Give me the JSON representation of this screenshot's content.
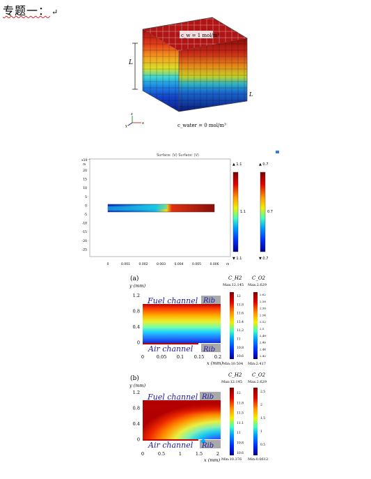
{
  "heading": {
    "text": "专题一：",
    "return_mark": "↵"
  },
  "cube": {
    "label_top": "c_w = 1 mol/m³",
    "label_bottom": "c_water = 0 mol/m³",
    "dim_left": "L",
    "dim_right": "L",
    "axes": {
      "x": "x",
      "y": "y",
      "z": "z"
    }
  },
  "fig2": {
    "title": "Surface: (V) Surface: (V)",
    "y_exp": "x10⁻⁴",
    "y_unit": "m",
    "x_unit": "m",
    "y_ticks": [
      "20",
      "15",
      "10",
      "5",
      "0",
      "-5",
      "-10",
      "-15",
      "-20",
      "-25"
    ],
    "x_ticks": [
      "0",
      "0.001",
      "0.002",
      "0.003",
      "0.004",
      "0.005",
      "0.006"
    ],
    "cbar1": {
      "max": "▲ 1.1",
      "mid": "1.1",
      "min": "▼ 1.1"
    },
    "cbar2": {
      "max": "▲ 0.7",
      "mid": "0.7",
      "min": "▼ 0.7"
    }
  },
  "fig_a": {
    "tag": "(a)",
    "ylabel": "y (mm)",
    "xlabel": "x (mm)",
    "y_ticks": [
      "1.2",
      "0.8",
      "0.4",
      "0"
    ],
    "x_ticks": [
      "0",
      "0.05",
      "0.1",
      "0.15",
      "0.2"
    ],
    "fuel": "Fuel channel",
    "air": "Air channel",
    "rib_top": "Rib",
    "rib_bottom": "Rib",
    "cb1": {
      "name": "C_H2",
      "max": "Max:12.145",
      "min": "Min:10.504",
      "ticks": [
        "12",
        "11.8",
        "11.6",
        "11.4",
        "11.2",
        "11",
        "10.8",
        "10.6"
      ]
    },
    "cb2": {
      "name": "C_O2",
      "max": "Max:2.629",
      "min": "Min:2.417",
      "ticks": [
        "2.62",
        "2.58",
        "2.56",
        "2.54",
        "2.52",
        "2.5",
        "2.48",
        "2.46",
        "2.44",
        "2.42"
      ]
    }
  },
  "fig_b": {
    "tag": "(b)",
    "ylabel": "y (mm)",
    "xlabel": "x (mm)",
    "y_ticks": [
      "1.2",
      "0.8",
      "0.4",
      "0"
    ],
    "x_ticks": [
      "0",
      "0.5",
      "1",
      "1.5",
      "2"
    ],
    "fuel": "Fuel channel",
    "air": "Air channel",
    "rib_top": "Rib",
    "rib_bottom": "Rib",
    "cb1": {
      "name": "C_H2",
      "max": "Max:12.145",
      "min": "Min:10.376",
      "ticks": [
        "12",
        "11.8",
        "11.5",
        "11.1",
        "11",
        "10.8",
        "10.6"
      ]
    },
    "cb2": {
      "name": "C_O2",
      "max": "Max:2.629",
      "min": "Min:0.0612",
      "ticks": [
        "2.5",
        "2",
        "1.5",
        "1",
        "0.5"
      ]
    }
  }
}
